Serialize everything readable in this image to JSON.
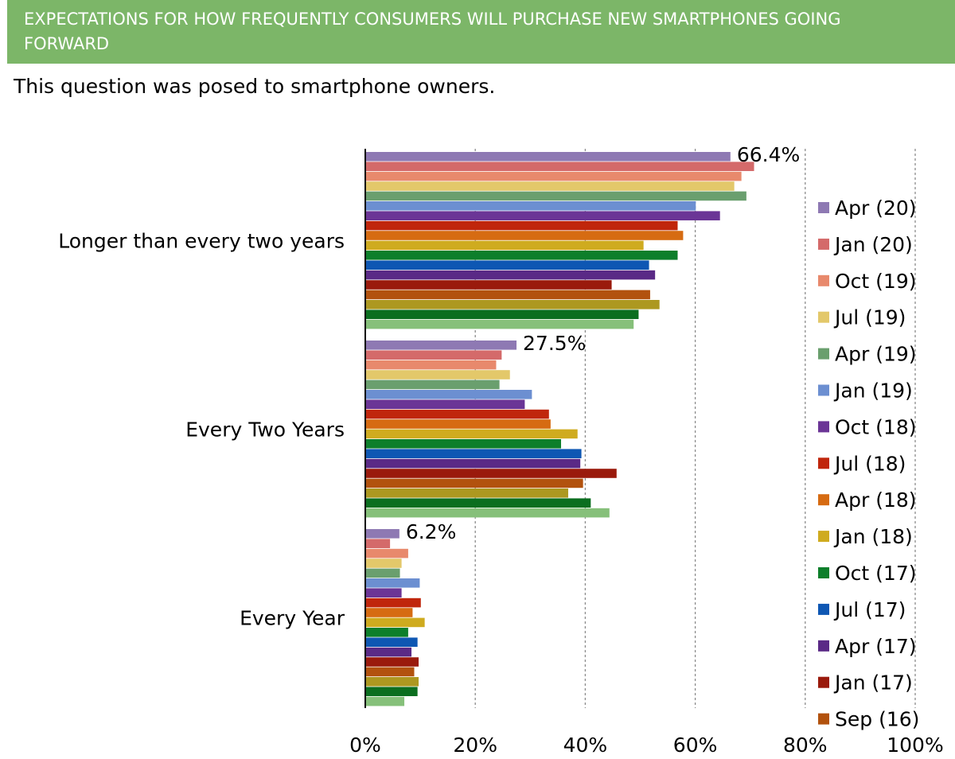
{
  "header": {
    "title": "EXPECTATIONS FOR HOW FREQUENTLY CONSUMERS WILL PURCHASE NEW SMARTPHONES GOING FORWARD",
    "subtitle": "This question was posed to smartphone owners."
  },
  "chart_data": {
    "type": "bar",
    "orientation": "horizontal",
    "categories": [
      "Longer than every two years",
      "Every Two Years",
      "Every Year"
    ],
    "xlim": [
      0,
      100
    ],
    "xticks": [
      "0%",
      "20%",
      "40%",
      "60%",
      "80%",
      "100%"
    ],
    "grid": "vertical dashed",
    "legend_position": "right",
    "series": [
      {
        "name": "Apr (20)",
        "color": "#8e79b3",
        "values": [
          66.4,
          27.5,
          6.2
        ],
        "label": [
          "66.4%",
          "27.5%",
          "6.2%"
        ]
      },
      {
        "name": "Jan (20)",
        "color": "#d46a6a",
        "values": [
          70.7,
          24.8,
          4.5
        ]
      },
      {
        "name": "Oct (19)",
        "color": "#e8896c",
        "values": [
          68.4,
          23.8,
          7.8
        ]
      },
      {
        "name": "Jul (19)",
        "color": "#e3c86a",
        "values": [
          67.1,
          26.3,
          6.6
        ]
      },
      {
        "name": "Apr (19)",
        "color": "#6a9f6e",
        "values": [
          69.3,
          24.4,
          6.3
        ]
      },
      {
        "name": "Jan (19)",
        "color": "#6c8fd1",
        "values": [
          60.1,
          30.3,
          9.9
        ]
      },
      {
        "name": "Oct (18)",
        "color": "#6b3596",
        "values": [
          64.5,
          29.0,
          6.6
        ]
      },
      {
        "name": "Jul (18)",
        "color": "#c0260c",
        "values": [
          56.8,
          33.4,
          10.1
        ]
      },
      {
        "name": "Apr (18)",
        "color": "#d66b12",
        "values": [
          57.8,
          33.7,
          8.6
        ]
      },
      {
        "name": "Jan (18)",
        "color": "#cfab1f",
        "values": [
          50.6,
          38.6,
          10.8
        ]
      },
      {
        "name": "Oct (17)",
        "color": "#0d7f2b",
        "values": [
          56.8,
          35.6,
          7.8
        ]
      },
      {
        "name": "Jul (17)",
        "color": "#0e57b3",
        "values": [
          51.6,
          39.3,
          9.5
        ]
      },
      {
        "name": "Apr (17)",
        "color": "#5a2a86",
        "values": [
          52.7,
          39.1,
          8.4
        ]
      },
      {
        "name": "Jan (17)",
        "color": "#9a1a0c",
        "values": [
          44.8,
          45.7,
          9.7
        ]
      },
      {
        "name": "Sep (16)",
        "color": "#b2520e",
        "values": [
          51.8,
          39.6,
          8.9
        ]
      },
      {
        "name": "",
        "color": "#ad9820",
        "values": [
          53.5,
          36.9,
          9.7
        ]
      },
      {
        "name": "",
        "color": "#0b6e1f",
        "values": [
          49.7,
          41.0,
          9.5
        ]
      },
      {
        "name": "",
        "color": "#86c07a",
        "values": [
          48.8,
          44.4,
          7.1
        ]
      }
    ]
  }
}
